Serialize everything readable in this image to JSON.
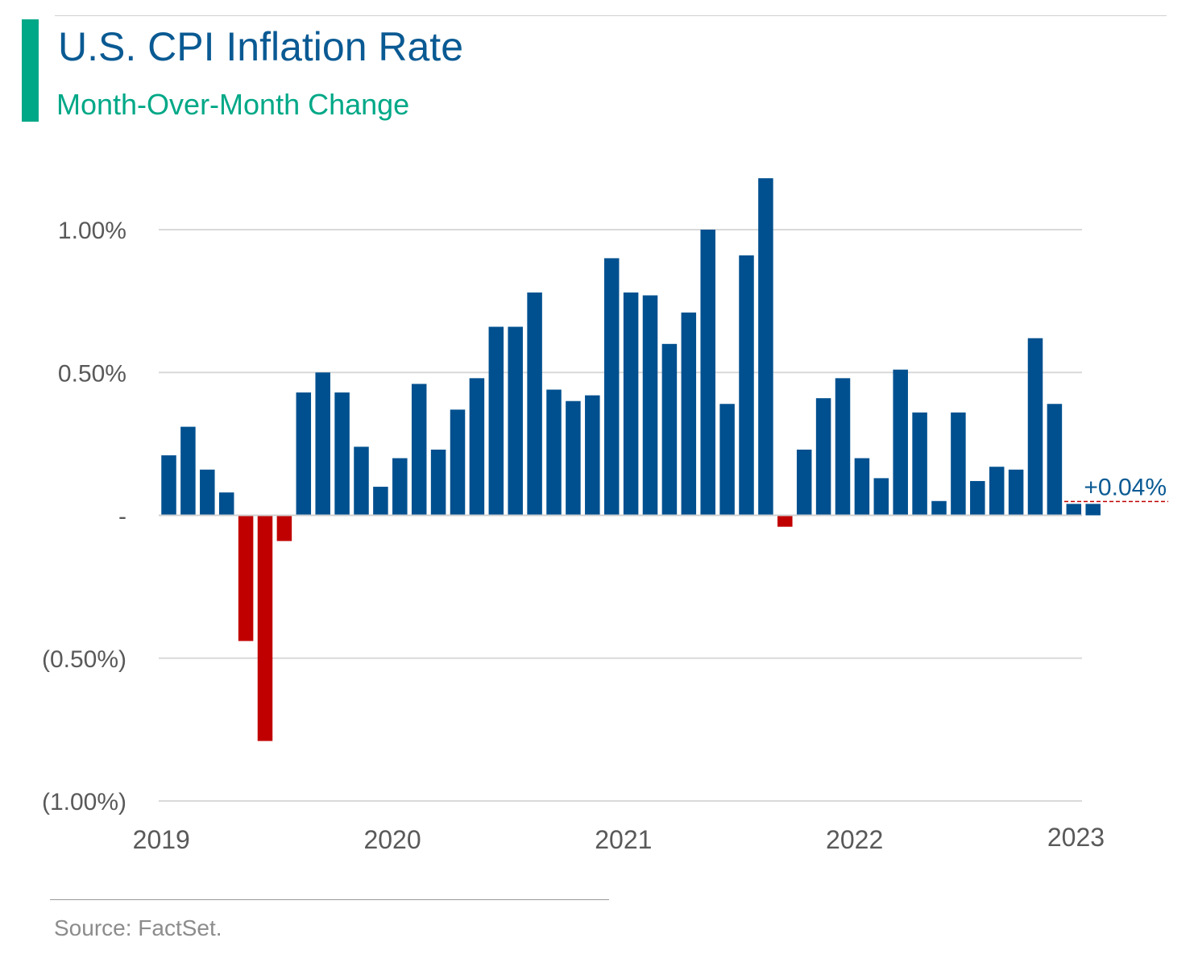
{
  "title": "U.S. CPI Inflation Rate",
  "subtitle": "Month-Over-Month Change",
  "source": "Source: FactSet.",
  "colors": {
    "accent": "#00a887",
    "title": "#0a5a93",
    "positive_bar": "#00508f",
    "negative_bar": "#c00000",
    "gridline": "#d9d9d9",
    "axis_text": "#595959",
    "callout_text": "#0a5a93",
    "callout_line": "#c00000"
  },
  "chart_data": {
    "type": "bar",
    "title": "U.S. CPI Inflation Rate",
    "subtitle": "Month-Over-Month Change",
    "x_tick_labels": [
      "2019",
      "2020",
      "2021",
      "2022",
      "2023"
    ],
    "x_tick_positions": [
      0,
      12,
      24,
      36,
      48
    ],
    "y_ticks": [
      {
        "value": 1.0,
        "label": "1.00%"
      },
      {
        "value": 0.5,
        "label": "0.50%"
      },
      {
        "value": 0.0,
        "label": "-"
      },
      {
        "value": -0.5,
        "label": "(0.50%)"
      },
      {
        "value": -1.0,
        "label": "(1.00%)"
      }
    ],
    "ylim": [
      -1.0,
      1.0
    ],
    "unit": "%",
    "grid": true,
    "categories": [
      "2019-01",
      "2019-02",
      "2019-03",
      "2019-04",
      "2019-05",
      "2019-06",
      "2019-07",
      "2019-08",
      "2019-09",
      "2019-10",
      "2019-11",
      "2019-12",
      "2020-01",
      "2020-02",
      "2020-03",
      "2020-04",
      "2020-05",
      "2020-06",
      "2020-07",
      "2020-08",
      "2020-09",
      "2020-10",
      "2020-11",
      "2020-12",
      "2021-01",
      "2021-02",
      "2021-03",
      "2021-04",
      "2021-05",
      "2021-06",
      "2021-07",
      "2021-08",
      "2021-09",
      "2021-10",
      "2021-11",
      "2021-12",
      "2022-01",
      "2022-02",
      "2022-03",
      "2022-04",
      "2022-05",
      "2022-06",
      "2022-07",
      "2022-08",
      "2022-09",
      "2022-10",
      "2022-11",
      "2022-12",
      "2023-01"
    ],
    "values": [
      0.21,
      0.31,
      0.16,
      0.08,
      -0.44,
      -0.79,
      -0.09,
      0.43,
      0.5,
      0.43,
      0.24,
      0.1,
      0.2,
      0.46,
      0.23,
      0.37,
      0.48,
      0.66,
      0.66,
      0.78,
      0.44,
      0.4,
      0.42,
      0.9,
      0.78,
      0.77,
      0.6,
      0.71,
      1.0,
      0.39,
      0.91,
      1.18,
      -0.04,
      0.23,
      0.41,
      0.48,
      0.2,
      0.13,
      0.51,
      0.36,
      0.05,
      0.36,
      0.12,
      0.17,
      0.16,
      0.62,
      0.39,
      0.04,
      0.04
    ],
    "callout": {
      "label": "+0.04%",
      "value": 0.04
    }
  }
}
